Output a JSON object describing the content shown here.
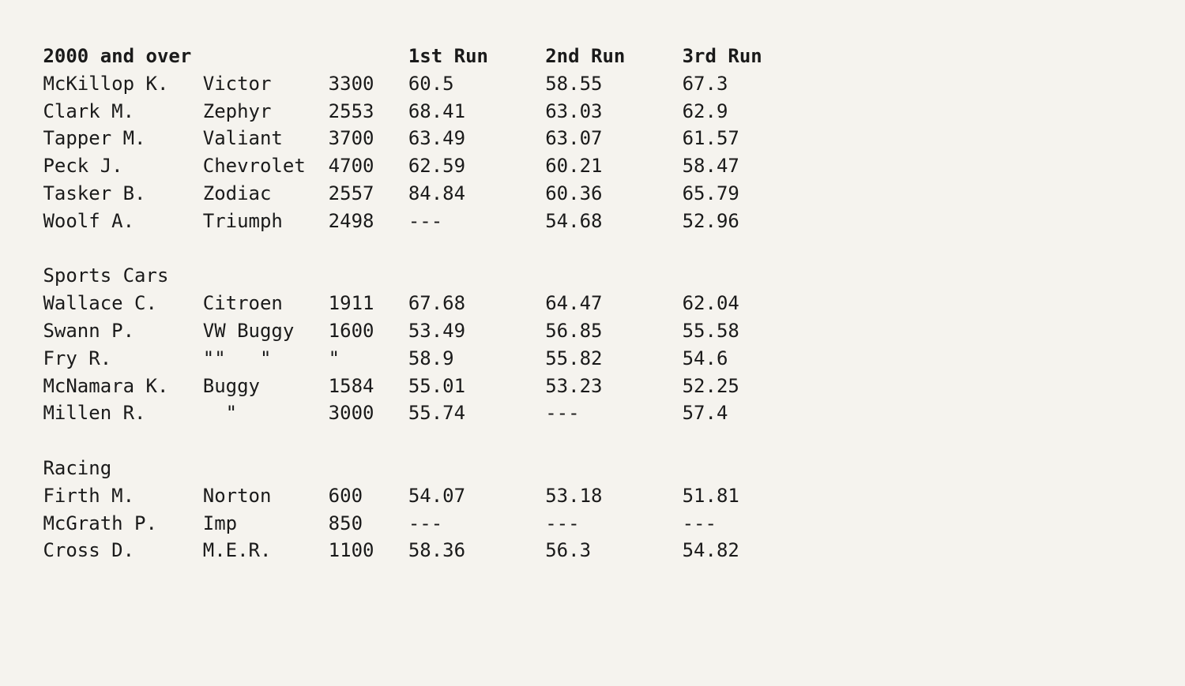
{
  "header": {
    "class_label": "2000 and over",
    "run1": "1st Run",
    "run2": "2nd Run",
    "run3": "3rd Run"
  },
  "sections": [
    {
      "title": null,
      "rows": [
        {
          "driver": "McKillop K.",
          "car": "Victor",
          "cc": "3300",
          "r1": "60.5",
          "r2": "58.55",
          "r3": "67.3"
        },
        {
          "driver": "Clark M.",
          "car": "Zephyr",
          "cc": "2553",
          "r1": "68.41",
          "r2": "63.03",
          "r3": "62.9"
        },
        {
          "driver": "Tapper M.",
          "car": "Valiant",
          "cc": "3700",
          "r1": "63.49",
          "r2": "63.07",
          "r3": "61.57"
        },
        {
          "driver": "Peck J.",
          "car": "Chevrolet",
          "cc": "4700",
          "r1": "62.59",
          "r2": "60.21",
          "r3": "58.47"
        },
        {
          "driver": "Tasker B.",
          "car": "Zodiac",
          "cc": "2557",
          "r1": "84.84",
          "r2": "60.36",
          "r3": "65.79"
        },
        {
          "driver": "Woolf A.",
          "car": "Triumph",
          "cc": "2498",
          "r1": "---",
          "r2": "54.68",
          "r3": "52.96"
        }
      ]
    },
    {
      "title": "Sports Cars",
      "rows": [
        {
          "driver": "Wallace C.",
          "car": "Citroen",
          "cc": "1911",
          "r1": "67.68",
          "r2": "64.47",
          "r3": "62.04"
        },
        {
          "driver": "Swann P.",
          "car": "VW Buggy",
          "cc": "1600",
          "r1": "53.49",
          "r2": "56.85",
          "r3": "55.58"
        },
        {
          "driver": "Fry R.",
          "car": "\"\"   \"",
          "cc": "\"",
          "r1": "58.9",
          "r2": "55.82",
          "r3": "54.6"
        },
        {
          "driver": "McNamara K.",
          "car": "Buggy",
          "cc": "1584",
          "r1": "55.01",
          "r2": "53.23",
          "r3": "52.25"
        },
        {
          "driver": "Millen R.",
          "car": "  \"",
          "cc": "3000",
          "r1": "55.74",
          "r2": "---",
          "r3": "57.4"
        }
      ]
    },
    {
      "title": "Racing",
      "rows": [
        {
          "driver": "Firth M.",
          "car": "Norton",
          "cc": "600",
          "r1": "54.07",
          "r2": "53.18",
          "r3": "51.81"
        },
        {
          "driver": "McGrath P.",
          "car": "Imp",
          "cc": "850",
          "r1": "---",
          "r2": "---",
          "r3": "---"
        },
        {
          "driver": "Cross D.",
          "car": "M.E.R.",
          "cc": "1100",
          "r1": "58.36",
          "r2": "56.3",
          "r3": "54.82"
        }
      ]
    }
  ],
  "layout": {
    "col_driver": 15,
    "col_car": 11,
    "col_cc": 7,
    "col_run": 12,
    "indent_driver": " ",
    "indent_section": " "
  }
}
